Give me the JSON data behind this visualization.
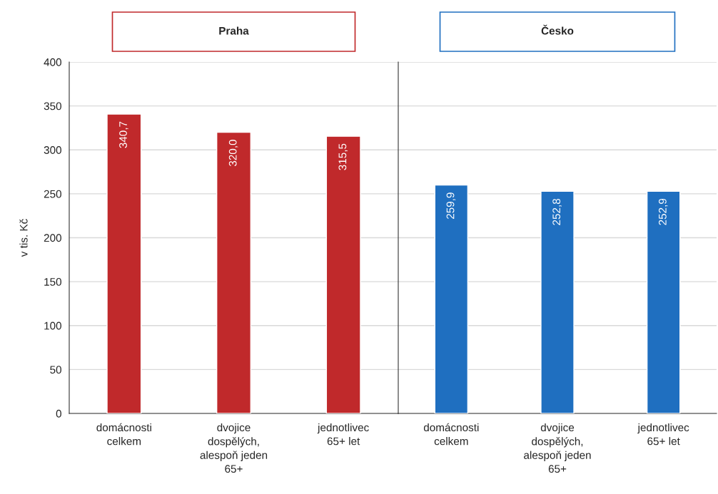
{
  "chart_data": [
    {
      "type": "bar",
      "title": "Praha",
      "ylabel": "v tis. Kč",
      "categories": [
        "domácnosti\ncelkem",
        "dvojice\ndospělých,\nalespoň jeden\n65+",
        "jednotlivec\n65+ let"
      ],
      "values": [
        340.7,
        320.0,
        315.5
      ],
      "value_labels": [
        "340,7",
        "320,0",
        "315,5"
      ],
      "colors": [
        "#c0292b",
        "#c0292b",
        "#c0292b"
      ],
      "ylim": [
        0,
        400
      ],
      "yticks": [
        0,
        50,
        100,
        150,
        200,
        250,
        300,
        350,
        400
      ],
      "grid": "y"
    },
    {
      "type": "bar",
      "title": "Česko",
      "categories": [
        "domácnosti\ncelkem",
        "dvojice\ndospělých,\nalespoň jeden\n65+",
        "jednotlivec\n65+ let"
      ],
      "values": [
        259.9,
        252.8,
        252.9
      ],
      "value_labels": [
        "259,9",
        "252,8",
        "252,9"
      ],
      "colors": [
        "#1f6fc0",
        "#1f6fc0",
        "#1f6fc0"
      ],
      "ylim": [
        0,
        400
      ],
      "yticks": [
        0,
        50,
        100,
        150,
        200,
        250,
        300,
        350,
        400
      ],
      "grid": "y",
      "tick_labels": "x"
    }
  ]
}
